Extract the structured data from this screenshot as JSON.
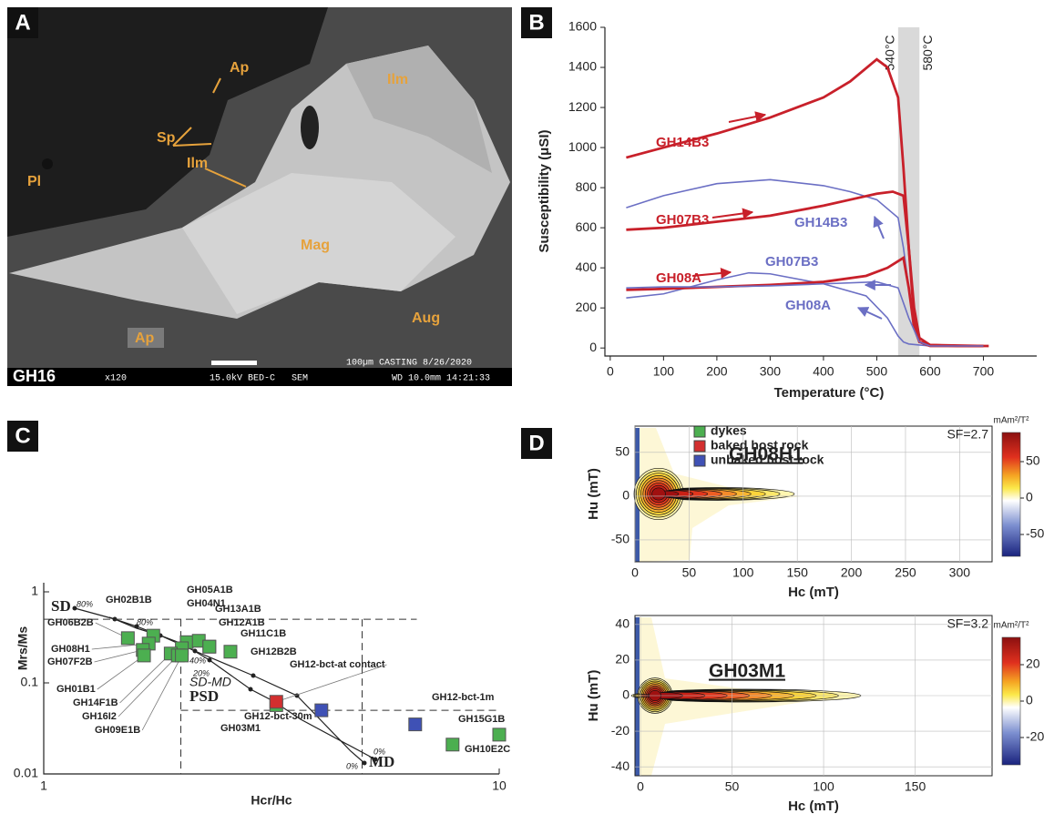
{
  "image": {
    "panel": "A",
    "labels": [
      "Ap",
      "Ilm",
      "Sp",
      "Ilm",
      "Pl",
      "Mag",
      "Aug",
      "Ap"
    ],
    "sample": "GH16",
    "footer": [
      "100µm CASTING 8/26/2020",
      "x120",
      "15.0kV BED-C",
      "SEM",
      "WD 10.0mm 14:21:33"
    ]
  },
  "chart_data": [
    {
      "panel": "B",
      "type": "line",
      "xlabel": "Temperature (°C)",
      "ylabel": "Susceptibility (μSI)",
      "xlim": [
        -10,
        800
      ],
      "ylim": [
        -40,
        1600
      ],
      "xticks": [
        0,
        100,
        200,
        300,
        400,
        500,
        600,
        700
      ],
      "yticks": [
        0,
        200,
        400,
        600,
        800,
        1000,
        1200,
        1400,
        1600
      ],
      "shade": [
        {
          "value": 540,
          "label": "540°C"
        },
        {
          "value": 580,
          "label": "580°C"
        }
      ],
      "series": [
        {
          "name": "GH14B3",
          "color": "#c8202a",
          "x": [
            30,
            100,
            200,
            300,
            400,
            450,
            500,
            520,
            540,
            550,
            560,
            570,
            580,
            600,
            650,
            710
          ],
          "values": [
            950,
            1000,
            1070,
            1150,
            1250,
            1330,
            1440,
            1400,
            1250,
            900,
            500,
            150,
            30,
            15,
            10,
            10
          ]
        },
        {
          "name": "GH14B3",
          "color": "#6b6fc4",
          "x": [
            30,
            100,
            200,
            300,
            400,
            450,
            500,
            540,
            550,
            560,
            570,
            580,
            600,
            700
          ],
          "values": [
            700,
            760,
            820,
            840,
            810,
            780,
            740,
            650,
            500,
            300,
            100,
            30,
            15,
            10
          ]
        },
        {
          "name": "GH07B3",
          "color": "#c8202a",
          "x": [
            30,
            100,
            200,
            300,
            400,
            450,
            500,
            530,
            550,
            560,
            570,
            580,
            600,
            700
          ],
          "values": [
            590,
            600,
            630,
            660,
            710,
            740,
            770,
            780,
            760,
            500,
            200,
            50,
            15,
            10
          ]
        },
        {
          "name": "GH07B3",
          "color": "#6b6fc4",
          "x": [
            30,
            100,
            200,
            260,
            300,
            400,
            480,
            520,
            540,
            550,
            560,
            580,
            600,
            700
          ],
          "values": [
            250,
            270,
            340,
            375,
            370,
            320,
            260,
            150,
            60,
            30,
            20,
            15,
            10,
            10
          ]
        },
        {
          "name": "GH08A",
          "color": "#c8202a",
          "x": [
            30,
            100,
            200,
            300,
            400,
            480,
            520,
            550,
            560,
            570,
            580,
            600,
            700
          ],
          "values": [
            290,
            295,
            305,
            315,
            330,
            360,
            400,
            450,
            300,
            100,
            30,
            10,
            10
          ]
        },
        {
          "name": "GH08A",
          "color": "#6b6fc4",
          "x": [
            30,
            100,
            200,
            300,
            400,
            500,
            540,
            560,
            580,
            600,
            700
          ],
          "values": [
            300,
            305,
            305,
            310,
            320,
            330,
            300,
            150,
            30,
            10,
            10
          ]
        }
      ]
    },
    {
      "panel": "C",
      "type": "scatter",
      "xscale": "log",
      "yscale": "log",
      "xlabel": "Hcr/Hc",
      "ylabel": "Mrs/Ms",
      "xlim": [
        1,
        10
      ],
      "ylim": [
        0.01,
        1
      ],
      "xticks": [
        1,
        10
      ],
      "yticks": [
        0.01,
        0.1,
        1
      ],
      "hlines": [
        0.5,
        0.05
      ],
      "vlines": [
        2,
        5
      ],
      "annotations": [
        "SD",
        "PSD",
        "MD",
        "SD-MD",
        "80%",
        "80%",
        "40%",
        "20%",
        "0%",
        "0%"
      ],
      "series": [
        {
          "name": "dykes",
          "color": "#4caf50",
          "labels": [
            "GH05A1B",
            "GH04N1",
            "GH02B1B",
            "GH06B2B",
            "GH08H1",
            "GH07F2B",
            "GH01B1",
            "GH14F1B",
            "GH16I2",
            "GH09E1B",
            "GH13A1B",
            "GH12A1B",
            "GH11C1B",
            "GH12B2B",
            "GH03M1",
            "GH15G1B",
            "GH10E2C"
          ],
          "x": [
            2.06,
            2.01,
            1.74,
            1.53,
            1.7,
            1.65,
            1.66,
            1.9,
            1.97,
            2.01,
            2.19,
            2.31,
            2.31,
            2.57,
            3.24,
            10,
            7.9
          ],
          "y": [
            0.28,
            0.24,
            0.33,
            0.31,
            0.27,
            0.23,
            0.2,
            0.21,
            0.2,
            0.2,
            0.29,
            0.25,
            0.25,
            0.22,
            0.057,
            0.027,
            0.021
          ]
        },
        {
          "name": "baked host rock",
          "color": "#d32f2f",
          "labels": [
            "GH12-bct-at contact"
          ],
          "x": [
            3.24
          ],
          "y": [
            0.062
          ]
        },
        {
          "name": "unbaked host rock",
          "color": "#3f51b5",
          "labels": [
            "GH12-bct-1m",
            "GH12-bct-30m"
          ],
          "x": [
            6.54,
            4.07
          ],
          "y": [
            0.035,
            0.05
          ]
        }
      ]
    },
    {
      "panel": "D",
      "type": "heatmap",
      "title": "GH08H1",
      "annotation": "SF=2.7",
      "xlabel": "Hc (mT)",
      "ylabel": "Hu (mT)",
      "xlim": [
        0,
        330
      ],
      "ylim": [
        -75,
        80
      ],
      "xticks": [
        0,
        50,
        100,
        150,
        200,
        250,
        300
      ],
      "yticks": [
        -50,
        0,
        50
      ],
      "grid": true,
      "colorbar": {
        "label": "mAm²/T²",
        "lim": [
          -80,
          90
        ],
        "ticks": [
          -50,
          0,
          50
        ]
      }
    },
    {
      "type": "heatmap",
      "title": "GH03M1",
      "annotation": "SF=3.2",
      "xlabel": "Hc (mT)",
      "ylabel": "Hu (mT)",
      "xlim": [
        -3,
        192
      ],
      "ylim": [
        -45,
        45
      ],
      "xticks": [
        0,
        50,
        100,
        150
      ],
      "yticks": [
        -40,
        -20,
        0,
        20,
        40
      ],
      "grid": true,
      "colorbar": {
        "label": "mAm²/T²",
        "lim": [
          -35,
          35
        ],
        "ticks": [
          -20,
          0,
          20
        ]
      }
    }
  ]
}
